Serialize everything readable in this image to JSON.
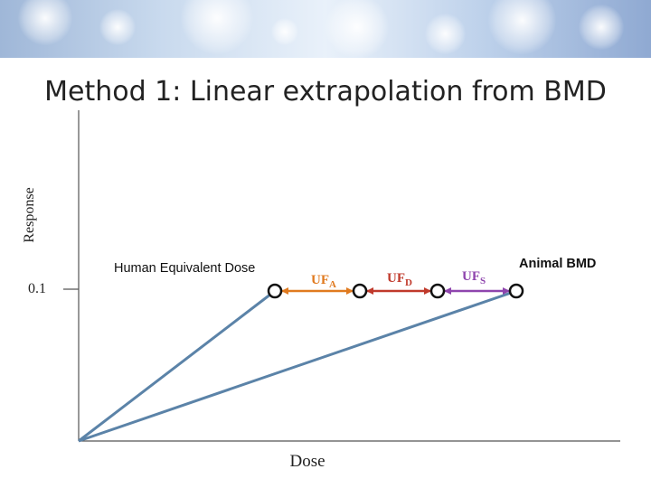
{
  "slide": {
    "title": "Method 1: Linear extrapolation from BMD"
  },
  "diagram": {
    "y_axis_label": "Response",
    "x_axis_label": "Dose",
    "response_level": "0.1",
    "human_dose_label": "Human Equivalent Dose",
    "animal_bmd_label": "Animal BMD",
    "factors": [
      {
        "base": "UF",
        "sub": "A",
        "color": "#e07a1f"
      },
      {
        "base": "UF",
        "sub": "D",
        "color": "#c0392b"
      },
      {
        "base": "UF",
        "sub": "S",
        "color": "#8e44ad"
      }
    ],
    "line_color": "#5b83a8"
  }
}
